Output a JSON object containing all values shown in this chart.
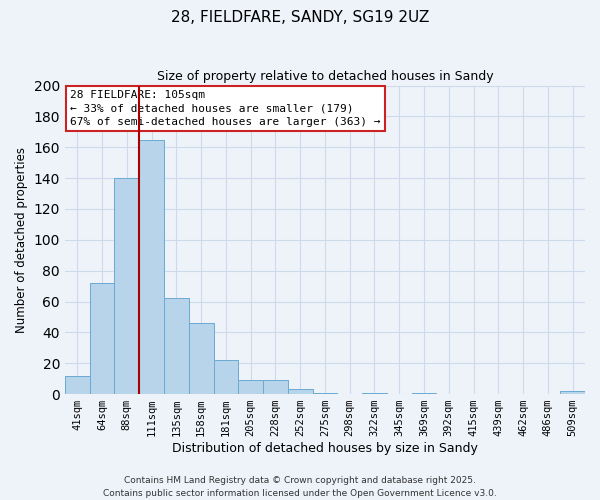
{
  "title": "28, FIELDFARE, SANDY, SG19 2UZ",
  "subtitle": "Size of property relative to detached houses in Sandy",
  "xlabel": "Distribution of detached houses by size in Sandy",
  "ylabel": "Number of detached properties",
  "bar_labels": [
    "41sqm",
    "64sqm",
    "88sqm",
    "111sqm",
    "135sqm",
    "158sqm",
    "181sqm",
    "205sqm",
    "228sqm",
    "252sqm",
    "275sqm",
    "298sqm",
    "322sqm",
    "345sqm",
    "369sqm",
    "392sqm",
    "415sqm",
    "439sqm",
    "462sqm",
    "486sqm",
    "509sqm"
  ],
  "bar_values": [
    12,
    72,
    140,
    165,
    62,
    46,
    22,
    9,
    9,
    3,
    1,
    0,
    1,
    0,
    1,
    0,
    0,
    0,
    0,
    0,
    2
  ],
  "bar_color": "#b8d4ea",
  "bar_edge_color": "#6aaad4",
  "ylim": [
    0,
    200
  ],
  "yticks": [
    0,
    20,
    40,
    60,
    80,
    100,
    120,
    140,
    160,
    180,
    200
  ],
  "vline_x_index": 3,
  "vline_color": "#aa0000",
  "annotation_title": "28 FIELDFARE: 105sqm",
  "annotation_line1": "← 33% of detached houses are smaller (179)",
  "annotation_line2": "67% of semi-detached houses are larger (363) →",
  "annotation_box_color": "#ffffff",
  "annotation_box_edge": "#cc2222",
  "grid_color": "#ccdaeb",
  "background_color": "#eef3fa",
  "footer1": "Contains HM Land Registry data © Crown copyright and database right 2025.",
  "footer2": "Contains public sector information licensed under the Open Government Licence v3.0."
}
